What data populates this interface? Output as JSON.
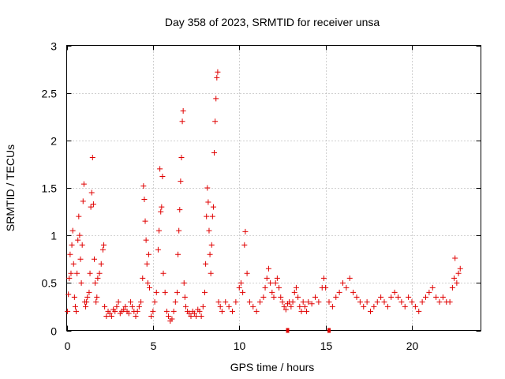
{
  "chart_data": {
    "type": "scatter",
    "title": "Day 358 of 2023, SRMTID for receiver unsa",
    "xlabel": "GPS time / hours",
    "ylabel": "SRMTID / TECUs",
    "xlim": [
      0,
      24
    ],
    "ylim": [
      0,
      3
    ],
    "xticks": [
      0,
      5,
      10,
      15,
      20
    ],
    "xtick_labels": [
      "0",
      "5",
      "10",
      "15",
      "20"
    ],
    "yticks": [
      0,
      0.5,
      1,
      1.5,
      2,
      2.5,
      3
    ],
    "ytick_labels": [
      "0",
      "0.5",
      "1",
      "1.5",
      "2",
      "2.5",
      "3"
    ],
    "grid": true,
    "marker": "+",
    "color": "#e00000",
    "series": [
      {
        "name": "SRMTID",
        "points": [
          [
            0.05,
            0.2
          ],
          [
            0.1,
            0.38
          ],
          [
            0.15,
            0.55
          ],
          [
            0.2,
            0.8
          ],
          [
            0.25,
            0.6
          ],
          [
            0.3,
            0.9
          ],
          [
            0.35,
            1.05
          ],
          [
            0.4,
            0.7
          ],
          [
            0.45,
            0.35
          ],
          [
            0.5,
            0.25
          ],
          [
            0.55,
            0.2
          ],
          [
            0.6,
            0.6
          ],
          [
            0.65,
            0.95
          ],
          [
            0.7,
            1.2
          ],
          [
            0.75,
            1.0
          ],
          [
            0.8,
            0.75
          ],
          [
            0.85,
            0.5
          ],
          [
            0.9,
            0.9
          ],
          [
            0.95,
            1.36
          ],
          [
            1.0,
            1.54
          ],
          [
            1.05,
            0.3
          ],
          [
            1.1,
            0.25
          ],
          [
            1.15,
            0.3
          ],
          [
            1.2,
            0.35
          ],
          [
            1.3,
            0.4
          ],
          [
            1.35,
            0.6
          ],
          [
            1.4,
            1.3
          ],
          [
            1.45,
            1.45
          ],
          [
            1.5,
            1.82
          ],
          [
            1.55,
            1.33
          ],
          [
            1.6,
            0.75
          ],
          [
            1.65,
            0.5
          ],
          [
            1.7,
            0.3
          ],
          [
            1.75,
            0.35
          ],
          [
            1.8,
            0.55
          ],
          [
            1.9,
            0.6
          ],
          [
            2.0,
            0.7
          ],
          [
            2.1,
            0.85
          ],
          [
            2.15,
            0.9
          ],
          [
            2.2,
            0.25
          ],
          [
            2.3,
            0.15
          ],
          [
            2.4,
            0.2
          ],
          [
            2.5,
            0.18
          ],
          [
            2.6,
            0.15
          ],
          [
            2.7,
            0.22
          ],
          [
            2.8,
            0.2
          ],
          [
            2.9,
            0.25
          ],
          [
            3.0,
            0.3
          ],
          [
            3.1,
            0.18
          ],
          [
            3.2,
            0.2
          ],
          [
            3.3,
            0.22
          ],
          [
            3.4,
            0.25
          ],
          [
            3.5,
            0.2
          ],
          [
            3.6,
            0.18
          ],
          [
            3.7,
            0.3
          ],
          [
            3.8,
            0.25
          ],
          [
            3.9,
            0.2
          ],
          [
            4.0,
            0.15
          ],
          [
            4.1,
            0.2
          ],
          [
            4.2,
            0.25
          ],
          [
            4.3,
            0.3
          ],
          [
            4.4,
            0.55
          ],
          [
            4.45,
            1.52
          ],
          [
            4.5,
            1.38
          ],
          [
            4.55,
            1.15
          ],
          [
            4.6,
            0.95
          ],
          [
            4.65,
            0.7
          ],
          [
            4.7,
            0.5
          ],
          [
            4.75,
            0.8
          ],
          [
            4.8,
            0.45
          ],
          [
            4.9,
            0.15
          ],
          [
            5.0,
            0.2
          ],
          [
            5.1,
            0.3
          ],
          [
            5.2,
            0.4
          ],
          [
            5.3,
            0.85
          ],
          [
            5.35,
            1.05
          ],
          [
            5.4,
            1.7
          ],
          [
            5.45,
            1.25
          ],
          [
            5.5,
            1.3
          ],
          [
            5.55,
            1.62
          ],
          [
            5.6,
            0.6
          ],
          [
            5.7,
            0.4
          ],
          [
            5.8,
            0.2
          ],
          [
            5.9,
            0.15
          ],
          [
            6.0,
            0.1
          ],
          [
            6.1,
            0.12
          ],
          [
            6.2,
            0.2
          ],
          [
            6.3,
            0.3
          ],
          [
            6.4,
            0.4
          ],
          [
            6.45,
            0.8
          ],
          [
            6.5,
            1.05
          ],
          [
            6.55,
            1.27
          ],
          [
            6.6,
            1.57
          ],
          [
            6.65,
            1.82
          ],
          [
            6.7,
            2.2
          ],
          [
            6.75,
            2.31
          ],
          [
            6.8,
            0.5
          ],
          [
            6.85,
            0.35
          ],
          [
            6.9,
            0.25
          ],
          [
            7.0,
            0.2
          ],
          [
            7.1,
            0.18
          ],
          [
            7.2,
            0.15
          ],
          [
            7.3,
            0.2
          ],
          [
            7.4,
            0.18
          ],
          [
            7.5,
            0.15
          ],
          [
            7.6,
            0.22
          ],
          [
            7.7,
            0.2
          ],
          [
            7.8,
            0.15
          ],
          [
            7.9,
            0.25
          ],
          [
            8.0,
            0.4
          ],
          [
            8.05,
            0.7
          ],
          [
            8.1,
            1.2
          ],
          [
            8.15,
            1.5
          ],
          [
            8.2,
            1.35
          ],
          [
            8.25,
            1.05
          ],
          [
            8.3,
            0.8
          ],
          [
            8.35,
            0.6
          ],
          [
            8.4,
            0.9
          ],
          [
            8.45,
            1.2
          ],
          [
            8.5,
            1.3
          ],
          [
            8.55,
            1.87
          ],
          [
            8.6,
            2.2
          ],
          [
            8.65,
            2.44
          ],
          [
            8.7,
            2.66
          ],
          [
            8.75,
            2.72
          ],
          [
            8.8,
            0.3
          ],
          [
            8.9,
            0.25
          ],
          [
            9.0,
            0.2
          ],
          [
            9.2,
            0.3
          ],
          [
            9.4,
            0.25
          ],
          [
            9.6,
            0.2
          ],
          [
            9.8,
            0.3
          ],
          [
            10.0,
            0.45
          ],
          [
            10.1,
            0.5
          ],
          [
            10.2,
            0.4
          ],
          [
            10.3,
            0.9
          ],
          [
            10.35,
            1.04
          ],
          [
            10.45,
            0.6
          ],
          [
            10.6,
            0.3
          ],
          [
            10.8,
            0.25
          ],
          [
            11.0,
            0.2
          ],
          [
            11.2,
            0.3
          ],
          [
            11.4,
            0.35
          ],
          [
            11.5,
            0.45
          ],
          [
            11.6,
            0.55
          ],
          [
            11.7,
            0.65
          ],
          [
            11.8,
            0.5
          ],
          [
            11.9,
            0.4
          ],
          [
            12.0,
            0.35
          ],
          [
            12.1,
            0.5
          ],
          [
            12.2,
            0.55
          ],
          [
            12.3,
            0.45
          ],
          [
            12.4,
            0.35
          ],
          [
            12.5,
            0.3
          ],
          [
            12.6,
            0.25
          ],
          [
            12.7,
            0.22
          ],
          [
            12.8,
            0.28
          ],
          [
            12.9,
            0.3
          ],
          [
            13.0,
            0.25
          ],
          [
            13.1,
            0.3
          ],
          [
            13.2,
            0.4
          ],
          [
            13.3,
            0.45
          ],
          [
            13.4,
            0.35
          ],
          [
            13.5,
            0.25
          ],
          [
            13.6,
            0.2
          ],
          [
            13.7,
            0.3
          ],
          [
            13.8,
            0.25
          ],
          [
            13.9,
            0.2
          ],
          [
            14.0,
            0.3
          ],
          [
            14.2,
            0.28
          ],
          [
            14.4,
            0.35
          ],
          [
            14.6,
            0.3
          ],
          [
            14.8,
            0.45
          ],
          [
            14.9,
            0.55
          ],
          [
            15.0,
            0.45
          ],
          [
            15.2,
            0.3
          ],
          [
            15.4,
            0.25
          ],
          [
            15.6,
            0.35
          ],
          [
            15.8,
            0.4
          ],
          [
            16.0,
            0.5
          ],
          [
            16.2,
            0.45
          ],
          [
            16.4,
            0.55
          ],
          [
            16.6,
            0.4
          ],
          [
            16.8,
            0.35
          ],
          [
            17.0,
            0.3
          ],
          [
            17.2,
            0.25
          ],
          [
            17.4,
            0.3
          ],
          [
            17.6,
            0.2
          ],
          [
            17.8,
            0.25
          ],
          [
            18.0,
            0.3
          ],
          [
            18.2,
            0.35
          ],
          [
            18.4,
            0.3
          ],
          [
            18.6,
            0.25
          ],
          [
            18.8,
            0.35
          ],
          [
            19.0,
            0.4
          ],
          [
            19.2,
            0.35
          ],
          [
            19.4,
            0.3
          ],
          [
            19.6,
            0.25
          ],
          [
            19.8,
            0.35
          ],
          [
            20.0,
            0.3
          ],
          [
            20.2,
            0.25
          ],
          [
            20.4,
            0.2
          ],
          [
            20.6,
            0.3
          ],
          [
            20.8,
            0.35
          ],
          [
            21.0,
            0.4
          ],
          [
            21.2,
            0.45
          ],
          [
            21.4,
            0.35
          ],
          [
            21.6,
            0.3
          ],
          [
            21.8,
            0.35
          ],
          [
            22.0,
            0.3
          ],
          [
            22.2,
            0.3
          ],
          [
            22.35,
            0.45
          ],
          [
            22.45,
            0.55
          ],
          [
            22.5,
            0.76
          ],
          [
            22.6,
            0.5
          ],
          [
            22.7,
            0.6
          ],
          [
            22.8,
            0.65
          ]
        ]
      }
    ],
    "gap_markers_x": [
      12.8,
      15.2
    ]
  }
}
